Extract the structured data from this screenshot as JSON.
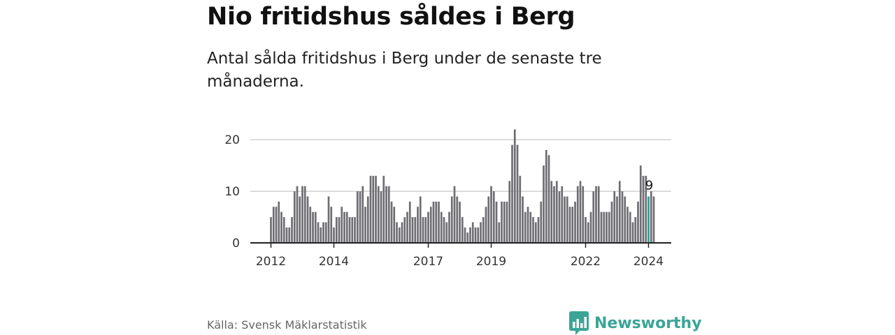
{
  "title": "Nio fritidshus såldes i Berg",
  "subtitle": "Antal sålda fritidshus i Berg under de senaste tre månaderna.",
  "source": "Källa: Svensk Mäklarstatistik",
  "brand": {
    "name": "Newsworthy",
    "icon": "newsworthy-chart-logo-icon",
    "color": "#3aa597"
  },
  "colors": {
    "bar": "#6e6d72",
    "highlight": "#2a9d8f",
    "grid": "#d0d0d0",
    "axis": "#222222"
  },
  "chart_data": {
    "type": "bar",
    "ylim": [
      0,
      23
    ],
    "yticks": [
      0,
      10,
      20
    ],
    "grid": true,
    "x_tick_labels": [
      {
        "label": "2012",
        "index": 0
      },
      {
        "label": "2014",
        "index": 24
      },
      {
        "label": "2017",
        "index": 60
      },
      {
        "label": "2019",
        "index": 84
      },
      {
        "label": "2022",
        "index": 120
      },
      {
        "label": "2024",
        "index": 144
      }
    ],
    "values": [
      5,
      7,
      7,
      8,
      6,
      5,
      3,
      3,
      5,
      10,
      11,
      9,
      11,
      11,
      9,
      7,
      6,
      6,
      4,
      3,
      4,
      4,
      9,
      7,
      3,
      5,
      5,
      7,
      6,
      6,
      5,
      5,
      5,
      10,
      10,
      11,
      7,
      9,
      13,
      13,
      13,
      11,
      10,
      13,
      11,
      11,
      8,
      7,
      4,
      3,
      4,
      5,
      6,
      8,
      5,
      5,
      7,
      9,
      5,
      5,
      6,
      7,
      8,
      8,
      8,
      6,
      5,
      4,
      6,
      9,
      11,
      9,
      8,
      5,
      3,
      2,
      3,
      4,
      3,
      3,
      4,
      5,
      7,
      9,
      11,
      10,
      8,
      4,
      8,
      8,
      8,
      12,
      19,
      22,
      19,
      13,
      9,
      6,
      7,
      6,
      5,
      4,
      5,
      8,
      15,
      18,
      17,
      12,
      11,
      12,
      10,
      11,
      9,
      9,
      7,
      7,
      8,
      11,
      12,
      11,
      5,
      4,
      6,
      10,
      11,
      11,
      6,
      6,
      6,
      6,
      8,
      10,
      9,
      12,
      10,
      9,
      7,
      6,
      4,
      5,
      8,
      15,
      13,
      13,
      9,
      10,
      9
    ],
    "highlight_index": 144,
    "highlight_label": "9"
  }
}
